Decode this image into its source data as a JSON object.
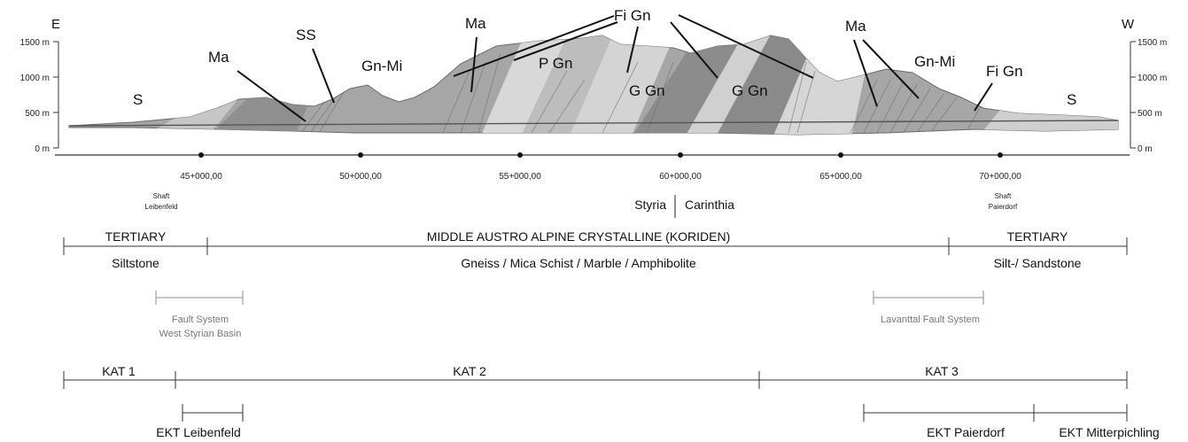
{
  "directions": {
    "left": "E",
    "right": "W"
  },
  "elevations": [
    "1500 m",
    "1000 m",
    "500 m",
    "0 m"
  ],
  "rock_labels": {
    "s_left": "S",
    "ma_1": "Ma",
    "ss": "SS",
    "gn_mi_1": "Gn-Mi",
    "ma_2": "Ma",
    "fi_gn_top": "Fi Gn",
    "p_gn": "P Gn",
    "g_gn_1": "G Gn",
    "g_gn_2": "G Gn",
    "ma_3": "Ma",
    "gn_mi_2": "Gn-Mi",
    "fi_gn_right": "Fi Gn",
    "s_right": "S"
  },
  "chainages": [
    "45+000,00",
    "50+000,00",
    "55+000,00",
    "60+000,00",
    "65+000,00",
    "70+000,00"
  ],
  "shafts": {
    "left": {
      "line1": "Shaft",
      "line2": "Leibenfeld"
    },
    "right": {
      "line1": "Shaft",
      "line2": "Paierdorf"
    }
  },
  "regions": {
    "left": "Styria",
    "right": "Carinthia"
  },
  "bands": {
    "tertiary_left": "TERTIARY",
    "middle": "MIDDLE AUSTRO ALPINE CRYSTALLINE (KORIDEN)",
    "tertiary_right": "TERTIARY",
    "siltstone": "Siltstone",
    "gneiss": "Gneiss / Mica Schist / Marble / Amphibolite",
    "silt_sandstone": "Silt-/ Sandstone"
  },
  "faults": {
    "west_line1": "Fault System",
    "west_line2": "West Styrian Basin",
    "lavanttal": "Lavanttal Fault System"
  },
  "kat": {
    "k1": "KAT 1",
    "k2": "KAT 2",
    "k3": "KAT 3"
  },
  "ekt": {
    "leibenfeld": "EKT Leibenfeld",
    "paierdorf": "EKT Paierdorf",
    "mitterpichling": "EKT Mitterpichling"
  },
  "colors": {
    "dark_rock": "#8c8c8c",
    "mid_rock": "#b5b5b5",
    "light_rock": "#d8d8d8",
    "fault_grey": "#8a8a8a"
  }
}
